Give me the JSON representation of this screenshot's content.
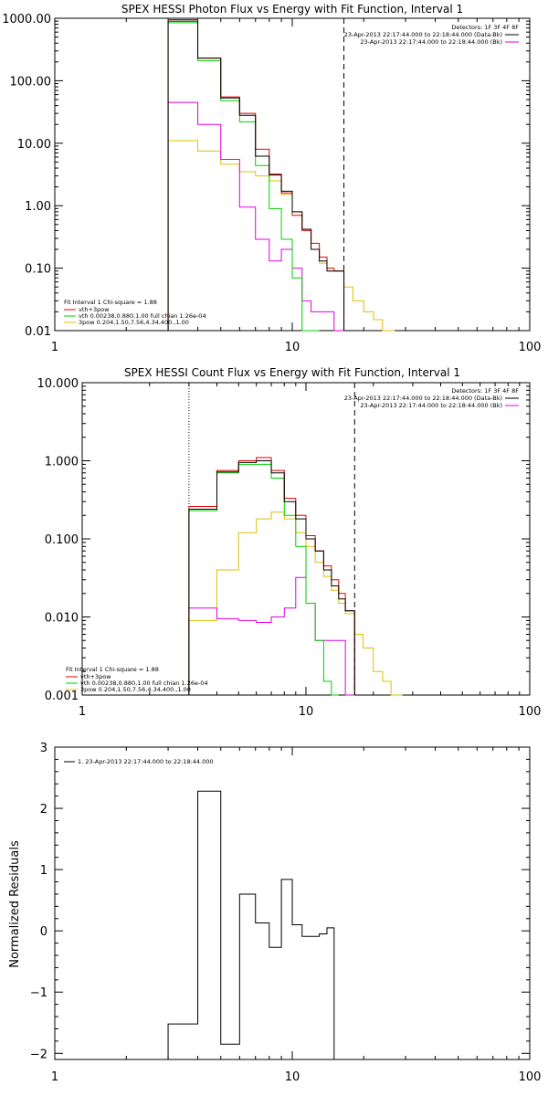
{
  "colors": {
    "black": "#000000",
    "red": "#e00000",
    "green": "#00d000",
    "magenta": "#e000e0",
    "yellow": "#e0c000"
  },
  "chart_data": [
    {
      "type": "line",
      "title": "SPEX HESSI Photon Flux vs Energy with Fit Function, Interval 1",
      "xscale": "log",
      "yscale": "log",
      "xlim": [
        1,
        100
      ],
      "ylim": [
        0.01,
        1000
      ],
      "x_tick_labels": [
        "1",
        "10",
        "100"
      ],
      "y_tick_labels": [
        "0.01",
        "0.10",
        "1.00",
        "10.00",
        "100.00",
        "1000.00"
      ],
      "vertical_lines": [
        {
          "x": 3,
          "style": "dotted"
        },
        {
          "x": 16.5,
          "style": "dashed"
        }
      ],
      "legend_top_right": [
        "Detectors: 1F 3F 4F 8F",
        "23-Apr-2013 22:17:44.000 to 22:18:44.000 (Data-Bk)",
        "23-Apr-2013 22:17:44.000 to 22:18:44.000 (Bk)"
      ],
      "legend_bottom_left": [
        "Fit Interval 1   Chi-square = 1.88",
        "vth+3pow",
        "vth 0.00238,0.880,1.00  full chian 1.26e-04",
        "3pow 0.204,1.50,7.56,4.34,400.,1.00"
      ],
      "bin_edges": [
        3,
        4,
        5,
        6,
        7,
        8,
        9,
        10,
        11,
        12,
        13,
        14,
        15,
        16.5,
        18,
        20,
        22,
        24,
        27
      ],
      "series": [
        {
          "name": "Data-Bk",
          "color": "black",
          "values": [
            900,
            230,
            53,
            28,
            6.2,
            3.1,
            1.7,
            0.8,
            0.42,
            0.2,
            0.13,
            0.09,
            0.09,
            null,
            null,
            null,
            null,
            null
          ]
        },
        {
          "name": "Bk",
          "color": "magenta",
          "values": [
            45,
            20,
            5.5,
            0.95,
            0.29,
            0.13,
            0.2,
            0.1,
            0.03,
            0.02,
            0.02,
            0.02,
            0.009,
            null,
            null,
            null,
            null,
            null
          ]
        },
        {
          "name": "vth+3pow",
          "color": "red",
          "values": [
            950,
            230,
            55,
            30,
            8,
            3.2,
            1.6,
            0.7,
            0.4,
            0.25,
            0.15,
            0.1,
            0.09,
            null,
            null,
            null,
            null,
            null
          ]
        },
        {
          "name": "vth",
          "color": "green",
          "values": [
            850,
            210,
            48,
            22,
            4.4,
            0.9,
            0.29,
            0.07,
            0.01,
            0.002,
            null,
            null,
            null,
            null,
            null,
            null,
            null,
            null
          ]
        },
        {
          "name": "3pow",
          "color": "yellow",
          "values": [
            11,
            7.5,
            4.6,
            3.5,
            3,
            2.5,
            1.5,
            0.8,
            0.42,
            0.2,
            0.12,
            0.09,
            0.09,
            0.05,
            0.03,
            0.02,
            0.015,
            0.01
          ]
        }
      ]
    },
    {
      "type": "line",
      "title": "SPEX HESSI Count Flux vs Energy with Fit Function, Interval 1",
      "xscale": "log",
      "yscale": "log",
      "xlim": [
        1,
        100
      ],
      "ylim": [
        0.001,
        10
      ],
      "x_tick_labels": [
        "1",
        "10",
        "100"
      ],
      "y_tick_labels": [
        "0.001",
        "0.010",
        "0.100",
        "1.000",
        "10.000"
      ],
      "vertical_lines": [
        {
          "x": 3,
          "style": "dotted"
        },
        {
          "x": 16.5,
          "style": "dashed"
        }
      ],
      "legend_top_right": [
        "Detectors: 1F 3F 4F 8F",
        "23-Apr-2013 22:17:44.000 to 22:18:44.000 (Data-Bk)",
        "23-Apr-2013 22:17:44.000 to 22:18:44.000 (Bk)"
      ],
      "legend_bottom_left": [
        "Fit Interval 1   Chi-square = 1.88",
        "vth+3pow",
        "vth 0.00238,0.880,1.00  full chian 1.26e-04",
        "3pow 0.204,1.50,7.56,4.34,400.,1.00"
      ],
      "bin_edges": [
        3,
        4,
        5,
        6,
        7,
        8,
        9,
        10,
        11,
        12,
        13,
        14,
        15,
        16.5,
        18,
        20,
        22,
        24,
        27
      ],
      "series": [
        {
          "name": "Data-Bk",
          "color": "black",
          "values": [
            0.24,
            0.72,
            0.95,
            1.0,
            0.7,
            0.3,
            0.18,
            0.1,
            0.07,
            0.04,
            0.025,
            0.017,
            0.012,
            null,
            null,
            null,
            null,
            null
          ]
        },
        {
          "name": "Bk",
          "color": "magenta",
          "values": [
            0.013,
            0.0095,
            0.009,
            0.0085,
            0.01,
            0.013,
            0.032,
            0.015,
            0.005,
            0.005,
            0.005,
            0.005,
            0.001,
            null,
            null,
            null,
            null,
            null
          ]
        },
        {
          "name": "vth+3pow",
          "color": "red",
          "values": [
            0.26,
            0.75,
            1.0,
            1.1,
            0.75,
            0.33,
            0.2,
            0.11,
            0.07,
            0.045,
            0.03,
            0.02,
            0.012,
            null,
            null,
            null,
            null,
            null
          ]
        },
        {
          "name": "vth",
          "color": "green",
          "values": [
            0.23,
            0.7,
            0.9,
            0.9,
            0.6,
            0.2,
            0.08,
            0.015,
            0.005,
            0.0015,
            0.001,
            null,
            null,
            null,
            null,
            null,
            null,
            null
          ]
        },
        {
          "name": "3pow",
          "color": "yellow",
          "values": [
            0.009,
            0.04,
            0.12,
            0.18,
            0.22,
            0.18,
            0.12,
            0.08,
            0.05,
            0.033,
            0.022,
            0.015,
            0.011,
            0.006,
            0.004,
            0.002,
            0.0015,
            0.001
          ]
        }
      ]
    },
    {
      "type": "line",
      "title": "",
      "xscale": "log",
      "yscale": "linear",
      "xlim": [
        1,
        100
      ],
      "ylim": [
        -2.1,
        3
      ],
      "ylabel": "Normalized Residuals",
      "x_tick_labels": [
        "1",
        "10",
        "100"
      ],
      "y_tick_labels": [
        "-2",
        "-1",
        "0",
        "1",
        "2",
        "3"
      ],
      "legend_top_left": [
        "1. 23-Apr-2013 22:17:44.000 to 22:18:44.000"
      ],
      "bin_edges": [
        3,
        4,
        5,
        6,
        7,
        8,
        9,
        10,
        11,
        12,
        13,
        14,
        15,
        16.5
      ],
      "series": [
        {
          "name": "",
          "color": "black",
          "values": [
            -1.52,
            2.28,
            -1.85,
            0.6,
            0.13,
            -0.27,
            0.84,
            0.1,
            -0.09,
            -0.09,
            -0.05,
            0.05,
            null
          ]
        }
      ]
    }
  ]
}
